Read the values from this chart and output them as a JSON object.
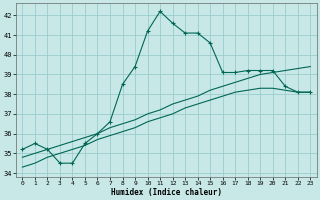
{
  "bg_color": "#c8e8e8",
  "grid_color": "#99cccc",
  "line_color": "#006655",
  "xlabel": "Humidex (Indice chaleur)",
  "xlim": [
    -0.5,
    23.5
  ],
  "ylim": [
    33.8,
    42.6
  ],
  "yticks": [
    34,
    35,
    36,
    37,
    38,
    39,
    40,
    41,
    42
  ],
  "xticks": [
    0,
    1,
    2,
    3,
    4,
    5,
    6,
    7,
    8,
    9,
    10,
    11,
    12,
    13,
    14,
    15,
    16,
    17,
    18,
    19,
    20,
    21,
    22,
    23
  ],
  "line1_x": [
    0,
    1,
    2,
    3,
    4,
    5,
    6,
    7,
    8,
    9,
    10,
    11,
    12,
    13,
    14,
    15,
    16,
    17,
    18,
    19,
    20,
    21,
    22,
    23
  ],
  "line1_y": [
    35.2,
    35.5,
    35.2,
    34.5,
    34.5,
    35.5,
    36.0,
    36.6,
    38.5,
    39.4,
    41.2,
    42.2,
    41.6,
    41.1,
    41.1,
    40.6,
    39.1,
    39.1,
    39.2,
    39.2,
    39.2,
    38.4,
    38.1,
    38.1
  ],
  "line2_x": [
    0,
    1,
    2,
    3,
    4,
    5,
    6,
    7,
    8,
    9,
    10,
    11,
    12,
    13,
    14,
    15,
    16,
    17,
    18,
    19,
    20,
    21,
    22,
    23
  ],
  "line2_y": [
    34.8,
    35.0,
    35.2,
    35.4,
    35.6,
    35.8,
    36.0,
    36.3,
    36.5,
    36.7,
    37.0,
    37.2,
    37.5,
    37.7,
    37.9,
    38.2,
    38.4,
    38.6,
    38.8,
    39.0,
    39.1,
    39.2,
    39.3,
    39.4
  ],
  "line3_x": [
    0,
    1,
    2,
    3,
    4,
    5,
    6,
    7,
    8,
    9,
    10,
    11,
    12,
    13,
    14,
    15,
    16,
    17,
    18,
    19,
    20,
    21,
    22,
    23
  ],
  "line3_y": [
    34.3,
    34.5,
    34.8,
    35.0,
    35.2,
    35.4,
    35.7,
    35.9,
    36.1,
    36.3,
    36.6,
    36.8,
    37.0,
    37.3,
    37.5,
    37.7,
    37.9,
    38.1,
    38.2,
    38.3,
    38.3,
    38.2,
    38.1,
    38.1
  ]
}
